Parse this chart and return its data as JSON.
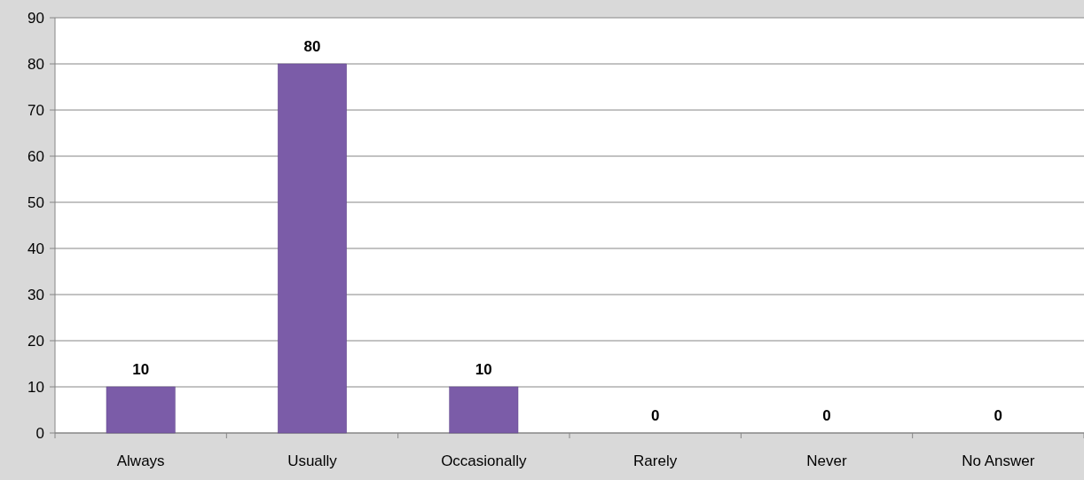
{
  "chart_data": {
    "type": "bar",
    "categories": [
      "Always",
      "Usually",
      "Occasionally",
      "Rarely",
      "Never",
      "No Answer"
    ],
    "values": [
      10,
      80,
      10,
      0,
      0,
      0
    ],
    "color": "#7b5ca8",
    "ylim": [
      0,
      90
    ],
    "yticks": [
      0,
      10,
      20,
      30,
      40,
      50,
      60,
      70,
      80,
      90
    ],
    "grid": "y",
    "data_labels": true
  }
}
